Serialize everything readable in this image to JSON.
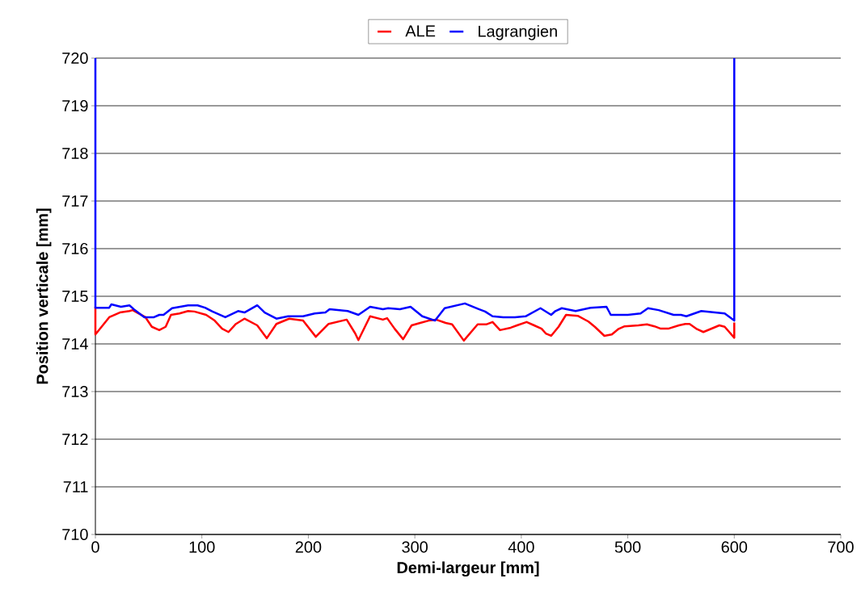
{
  "chart_data": {
    "type": "line",
    "xlabel": "Demi-largeur [mm]",
    "ylabel": "Position verticale [mm]",
    "xlim": [
      0,
      700
    ],
    "xticks": [
      0,
      100,
      200,
      300,
      400,
      500,
      600,
      700
    ],
    "ylim": [
      710,
      720
    ],
    "yticks": [
      710,
      711,
      712,
      713,
      714,
      715,
      716,
      717,
      718,
      719,
      720
    ],
    "grid": "y",
    "legend": "top",
    "marker": "none",
    "line_style": "solid",
    "series": [
      {
        "name": "ALE",
        "color": "#ff0000",
        "x": [
          0,
          0,
          13,
          23,
          32,
          35,
          47,
          53,
          60,
          66,
          71,
          79,
          87,
          93,
          104,
          112,
          119,
          125,
          132,
          140,
          152,
          161,
          170,
          182,
          195,
          207,
          219,
          236,
          244,
          247,
          258,
          270,
          274,
          281,
          289,
          297,
          305,
          313,
          320,
          329,
          335,
          346,
          359,
          367,
          373,
          380,
          390,
          396,
          405,
          412,
          419,
          423,
          428,
          435,
          442,
          453,
          463,
          469,
          478,
          485,
          491,
          497,
          510,
          518,
          525,
          531,
          538,
          548,
          554,
          558,
          565,
          571,
          586,
          591,
          600,
          600
        ],
        "values": [
          714.78,
          714.2,
          714.56,
          714.66,
          714.69,
          714.71,
          714.56,
          714.36,
          714.29,
          714.36,
          714.61,
          714.64,
          714.69,
          714.68,
          714.61,
          714.49,
          714.32,
          714.25,
          714.42,
          714.53,
          714.39,
          714.12,
          714.42,
          714.53,
          714.49,
          714.15,
          714.42,
          714.51,
          714.22,
          714.08,
          714.58,
          714.51,
          714.54,
          714.32,
          714.1,
          714.39,
          714.44,
          714.49,
          714.51,
          714.44,
          714.41,
          714.07,
          714.41,
          714.41,
          714.46,
          714.29,
          714.34,
          714.39,
          714.46,
          714.39,
          714.32,
          714.22,
          714.17,
          714.36,
          714.61,
          714.59,
          714.47,
          714.36,
          714.17,
          714.2,
          714.31,
          714.37,
          714.39,
          714.41,
          714.37,
          714.32,
          714.32,
          714.39,
          714.42,
          714.42,
          714.31,
          714.25,
          714.39,
          714.36,
          714.13,
          714.45
        ]
      },
      {
        "name": "Lagrangien",
        "color": "#0000ff",
        "x": [
          0,
          0,
          13,
          15,
          24,
          32,
          36,
          46,
          55,
          60,
          64,
          72,
          87,
          96,
          103,
          110,
          122,
          134,
          140,
          152,
          159,
          170,
          181,
          195,
          206,
          216,
          220,
          237,
          247,
          258,
          270,
          275,
          286,
          296,
          307,
          319,
          328,
          347,
          360,
          366,
          373,
          383,
          394,
          404,
          418,
          428,
          432,
          438,
          451,
          465,
          480,
          484,
          500,
          512,
          519,
          529,
          543,
          550,
          555,
          569,
          591,
          600,
          600
        ],
        "values": [
          720,
          714.76,
          714.76,
          714.83,
          714.78,
          714.81,
          714.73,
          714.56,
          714.56,
          714.61,
          714.61,
          714.75,
          714.81,
          714.81,
          714.76,
          714.68,
          714.56,
          714.69,
          714.66,
          714.81,
          714.66,
          714.53,
          714.58,
          714.58,
          714.64,
          714.66,
          714.73,
          714.69,
          714.61,
          714.78,
          714.73,
          714.75,
          714.73,
          714.78,
          714.58,
          714.49,
          714.75,
          714.85,
          714.73,
          714.68,
          714.58,
          714.56,
          714.56,
          714.58,
          714.75,
          714.61,
          714.69,
          714.75,
          714.69,
          714.76,
          714.78,
          714.61,
          714.61,
          714.64,
          714.75,
          714.71,
          714.61,
          714.61,
          714.58,
          714.69,
          714.64,
          714.49,
          720
        ]
      }
    ]
  }
}
